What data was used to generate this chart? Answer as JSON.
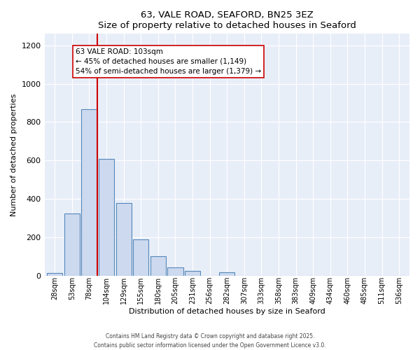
{
  "title": "63, VALE ROAD, SEAFORD, BN25 3EZ",
  "subtitle": "Size of property relative to detached houses in Seaford",
  "xlabel": "Distribution of detached houses by size in Seaford",
  "ylabel": "Number of detached properties",
  "bar_labels": [
    "28sqm",
    "53sqm",
    "78sqm",
    "104sqm",
    "129sqm",
    "155sqm",
    "180sqm",
    "205sqm",
    "231sqm",
    "256sqm",
    "282sqm",
    "307sqm",
    "333sqm",
    "358sqm",
    "383sqm",
    "409sqm",
    "434sqm",
    "460sqm",
    "485sqm",
    "511sqm",
    "536sqm"
  ],
  "bar_values": [
    12,
    323,
    869,
    608,
    378,
    189,
    102,
    44,
    25,
    0,
    18,
    0,
    0,
    0,
    0,
    0,
    0,
    0,
    0,
    0,
    0
  ],
  "bar_color": "#ccd9ee",
  "bar_edgecolor": "#5588bb",
  "vline_color": "#cc0000",
  "ylim": [
    0,
    1260
  ],
  "yticks": [
    0,
    200,
    400,
    600,
    800,
    1000,
    1200
  ],
  "annotation_title": "63 VALE ROAD: 103sqm",
  "annotation_line1": "← 45% of detached houses are smaller (1,149)",
  "annotation_line2": "54% of semi-detached houses are larger (1,379) →",
  "annotation_box_color": "#ffffff",
  "annotation_box_edgecolor": "#cc0000",
  "footer1": "Contains HM Land Registry data © Crown copyright and database right 2025.",
  "footer2": "Contains public sector information licensed under the Open Government Licence v3.0.",
  "bg_color": "#e8eef8",
  "grid_color": "#ffffff",
  "fig_bg_color": "#ffffff"
}
